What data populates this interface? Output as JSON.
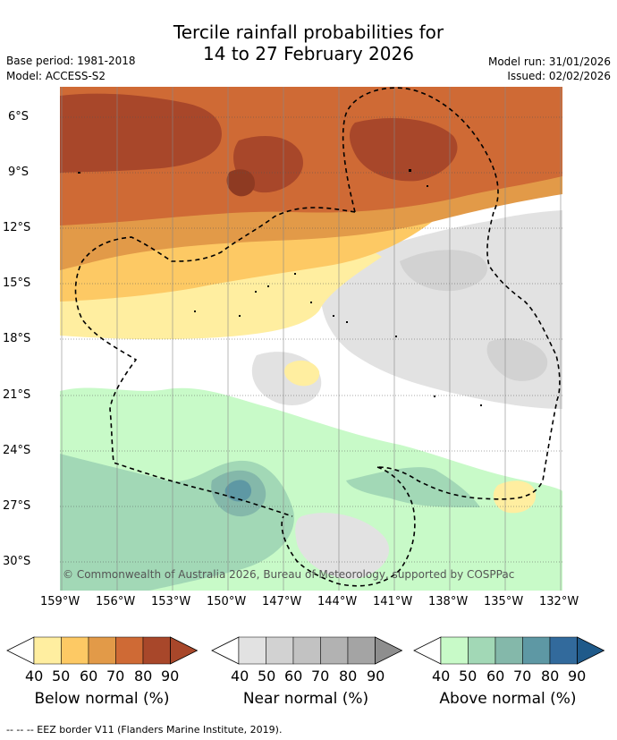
{
  "title": {
    "line1": "Tercile rainfall probabilities for",
    "line2": "14 to 27 February 2026"
  },
  "meta": {
    "base_period": "Base period: 1981-2018",
    "model": "Model: ACCESS-S2",
    "model_run": "Model run: 31/01/2026",
    "issued": "Issued: 02/02/2026"
  },
  "map": {
    "lat_ticks": [
      "6°S",
      "9°S",
      "12°S",
      "15°S",
      "18°S",
      "21°S",
      "24°S",
      "27°S",
      "30°S"
    ],
    "lon_ticks": [
      "159°W",
      "156°W",
      "153°W",
      "150°W",
      "147°W",
      "144°W",
      "141°W",
      "138°W",
      "135°W",
      "132°W"
    ],
    "copyright": "© Commonwealth of Australia 2026, Bureau of Meteorology, supported by COSPPac"
  },
  "colors": {
    "below": [
      "#ffeea0",
      "#fdc964",
      "#e29a48",
      "#cf6a35",
      "#a8472a",
      "#a8472a"
    ],
    "near": [
      "#e2e2e2",
      "#d2d2d2",
      "#c2c2c2",
      "#b2b2b2",
      "#a4a4a4",
      "#8e8e8e"
    ],
    "above": [
      "#c8fac8",
      "#a2d8b6",
      "#84b8aa",
      "#5e98a4",
      "#326a9c",
      "#1f5a8a"
    ],
    "white_band": "#ffffff"
  },
  "legends": [
    {
      "id": "below",
      "title": "Below normal (%)",
      "ticks": [
        "40",
        "50",
        "60",
        "70",
        "80",
        "90"
      ]
    },
    {
      "id": "near",
      "title": "Near normal (%)",
      "ticks": [
        "40",
        "50",
        "60",
        "70",
        "80",
        "90"
      ]
    },
    {
      "id": "above",
      "title": "Above normal (%)",
      "ticks": [
        "40",
        "50",
        "60",
        "70",
        "80",
        "90"
      ]
    }
  ],
  "footer": {
    "line": "-- -- -- EEZ border V11 (Flanders Marine Institute, 2019)."
  }
}
